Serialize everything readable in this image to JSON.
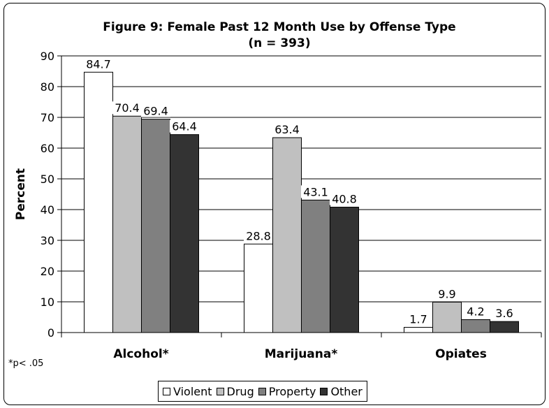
{
  "chart_data": {
    "type": "bar",
    "title": "Figure 9: Female Past 12 Month Use by Offense Type",
    "subtitle": "(n = 393)",
    "xlabel": "",
    "ylabel": "Percent",
    "ylim": [
      0,
      90
    ],
    "yticks": [
      0,
      10,
      20,
      30,
      40,
      50,
      60,
      70,
      80,
      90
    ],
    "categories": [
      "Alcohol*",
      "Marijuana*",
      "Opiates"
    ],
    "series": [
      {
        "name": "Violent",
        "color": "#ffffff",
        "values": [
          84.7,
          28.8,
          1.7
        ],
        "labels": [
          "84.7",
          "28.8",
          "1.7"
        ]
      },
      {
        "name": "Drug",
        "color": "#c0c0c0",
        "values": [
          70.4,
          63.4,
          9.9
        ],
        "labels": [
          "70.4",
          "63.4",
          "9.9"
        ]
      },
      {
        "name": "Property",
        "color": "#808080",
        "values": [
          69.4,
          43.1,
          4.2
        ],
        "labels": [
          "69.4",
          "43.1",
          "4.2"
        ]
      },
      {
        "name": "Other",
        "color": "#333333",
        "values": [
          64.4,
          40.8,
          3.6
        ],
        "labels": [
          "64.4",
          "40.8",
          "3.6"
        ]
      }
    ],
    "grid": true,
    "legend_position": "bottom",
    "footnote": "*p< .05"
  }
}
